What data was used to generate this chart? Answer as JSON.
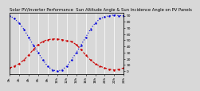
{
  "title": "Solar PV/Inverter Performance  Sun Altitude Angle & Sun Incidence Angle on PV Panels",
  "ylim": [
    -5,
    95
  ],
  "xlim": [
    0,
    24
  ],
  "yticks_right": [
    0,
    10,
    20,
    30,
    40,
    50,
    60,
    70,
    80,
    90
  ],
  "xtick_labels": [
    "0h",
    "2h",
    "4h",
    "6h",
    "8h",
    "10h",
    "12h",
    "14h",
    "16h",
    "18h",
    "20h",
    "22h",
    "24h"
  ],
  "xtick_positions": [
    0,
    2,
    4,
    6,
    8,
    10,
    12,
    14,
    16,
    18,
    20,
    22,
    24
  ],
  "blue_x": [
    0,
    1,
    2,
    3,
    4,
    5,
    6,
    7,
    8,
    9,
    10,
    11,
    12,
    13,
    14,
    15,
    16,
    17,
    18,
    19,
    20,
    21,
    22,
    23,
    24
  ],
  "blue_y": [
    90,
    85,
    78,
    68,
    55,
    42,
    30,
    18,
    8,
    2,
    0,
    2,
    8,
    18,
    30,
    42,
    55,
    68,
    78,
    85,
    88,
    90,
    91,
    90,
    90
  ],
  "red_x": [
    0,
    1,
    2,
    3,
    4,
    5,
    6,
    7,
    8,
    9,
    10,
    11,
    12,
    13,
    14,
    15,
    16,
    17,
    18,
    19,
    20,
    21,
    22,
    23,
    24
  ],
  "red_y": [
    5,
    8,
    12,
    18,
    26,
    35,
    43,
    48,
    51,
    52,
    52,
    51,
    49,
    48,
    43,
    35,
    26,
    18,
    12,
    8,
    5,
    3,
    2,
    3,
    5
  ],
  "blue_color": "#0000dd",
  "red_color": "#cc0000",
  "bg_color": "#d8d8d8",
  "grid_color": "#ffffff",
  "title_fontsize": 3.8,
  "tick_fontsize": 3.2
}
